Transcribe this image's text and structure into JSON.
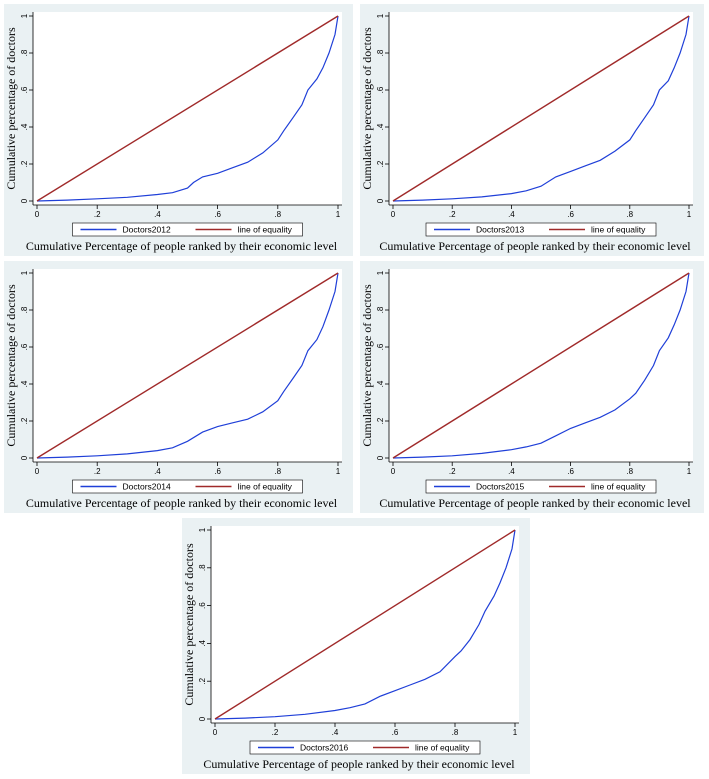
{
  "chart_data": [
    {
      "type": "line",
      "xlabel": "Cumulative Percentage of people ranked by their economic level",
      "ylabel": "Cumulative percentage of doctors",
      "xlim": [
        0,
        1
      ],
      "ylim": [
        0,
        1
      ],
      "xticks": [
        "0",
        ".2",
        ".4",
        ".6",
        ".8",
        "1"
      ],
      "yticks": [
        "0",
        ".2",
        ".4",
        ".6",
        ".8",
        "1"
      ],
      "legend_position": "bottom",
      "series": [
        {
          "name": "Doctors2012",
          "color": "#1f3fd8",
          "x": [
            0,
            0.1,
            0.2,
            0.3,
            0.4,
            0.45,
            0.5,
            0.52,
            0.55,
            0.6,
            0.65,
            0.7,
            0.75,
            0.8,
            0.82,
            0.85,
            0.88,
            0.9,
            0.93,
            0.95,
            0.97,
            0.99,
            1
          ],
          "y": [
            0,
            0.005,
            0.012,
            0.02,
            0.035,
            0.045,
            0.07,
            0.1,
            0.13,
            0.15,
            0.18,
            0.21,
            0.26,
            0.33,
            0.38,
            0.45,
            0.52,
            0.6,
            0.66,
            0.72,
            0.8,
            0.9,
            1
          ]
        },
        {
          "name": "line of equality",
          "color": "#a02a2a",
          "x": [
            0,
            1
          ],
          "y": [
            0,
            1
          ]
        }
      ]
    },
    {
      "type": "line",
      "xlabel": "Cumulative Percentage of people ranked by their economic level",
      "ylabel": "Cumulative percentage of doctors",
      "xlim": [
        0,
        1
      ],
      "ylim": [
        0,
        1
      ],
      "xticks": [
        "0",
        ".2",
        ".4",
        ".6",
        ".8",
        "1"
      ],
      "yticks": [
        "0",
        ".2",
        ".4",
        ".6",
        ".8",
        "1"
      ],
      "legend_position": "bottom",
      "series": [
        {
          "name": "Doctors2013",
          "color": "#1f3fd8",
          "x": [
            0,
            0.1,
            0.2,
            0.3,
            0.4,
            0.45,
            0.5,
            0.55,
            0.6,
            0.65,
            0.7,
            0.75,
            0.8,
            0.82,
            0.85,
            0.88,
            0.9,
            0.93,
            0.95,
            0.97,
            0.99,
            1
          ],
          "y": [
            0,
            0.005,
            0.012,
            0.022,
            0.04,
            0.055,
            0.08,
            0.13,
            0.16,
            0.19,
            0.22,
            0.27,
            0.33,
            0.38,
            0.45,
            0.52,
            0.6,
            0.65,
            0.72,
            0.8,
            0.9,
            1
          ]
        },
        {
          "name": "line of equality",
          "color": "#a02a2a",
          "x": [
            0,
            1
          ],
          "y": [
            0,
            1
          ]
        }
      ]
    },
    {
      "type": "line",
      "xlabel": "Cumulative Percentage of people ranked by their economic level",
      "ylabel": "Cumulative percentage of doctors",
      "xlim": [
        0,
        1
      ],
      "ylim": [
        0,
        1
      ],
      "xticks": [
        "0",
        ".2",
        ".4",
        ".6",
        ".8",
        "1"
      ],
      "yticks": [
        "0",
        ".2",
        ".4",
        ".6",
        ".8",
        "1"
      ],
      "legend_position": "bottom",
      "series": [
        {
          "name": "Doctors2014",
          "color": "#1f3fd8",
          "x": [
            0,
            0.1,
            0.2,
            0.3,
            0.4,
            0.45,
            0.5,
            0.55,
            0.6,
            0.65,
            0.7,
            0.75,
            0.8,
            0.82,
            0.85,
            0.88,
            0.9,
            0.93,
            0.95,
            0.97,
            0.99,
            1
          ],
          "y": [
            0,
            0.005,
            0.012,
            0.022,
            0.04,
            0.055,
            0.09,
            0.14,
            0.17,
            0.19,
            0.21,
            0.25,
            0.31,
            0.36,
            0.43,
            0.5,
            0.58,
            0.64,
            0.71,
            0.8,
            0.9,
            1
          ]
        },
        {
          "name": "line of equality",
          "color": "#a02a2a",
          "x": [
            0,
            1
          ],
          "y": [
            0,
            1
          ]
        }
      ]
    },
    {
      "type": "line",
      "xlabel": "Cumulative Percentage of people ranked by their economic level",
      "ylabel": "Cumulative percentage of doctors",
      "xlim": [
        0,
        1
      ],
      "ylim": [
        0,
        1
      ],
      "xticks": [
        "0",
        ".2",
        ".4",
        ".6",
        ".8",
        "1"
      ],
      "yticks": [
        "0",
        ".2",
        ".4",
        ".6",
        ".8",
        "1"
      ],
      "legend_position": "bottom",
      "series": [
        {
          "name": "Doctors2015",
          "color": "#1f3fd8",
          "x": [
            0,
            0.1,
            0.2,
            0.3,
            0.4,
            0.45,
            0.5,
            0.55,
            0.6,
            0.65,
            0.7,
            0.75,
            0.8,
            0.82,
            0.85,
            0.88,
            0.9,
            0.93,
            0.95,
            0.97,
            0.99,
            1
          ],
          "y": [
            0,
            0.005,
            0.012,
            0.025,
            0.045,
            0.06,
            0.08,
            0.12,
            0.16,
            0.19,
            0.22,
            0.26,
            0.32,
            0.35,
            0.42,
            0.5,
            0.58,
            0.65,
            0.72,
            0.8,
            0.9,
            1
          ]
        },
        {
          "name": "line of equality",
          "color": "#a02a2a",
          "x": [
            0,
            1
          ],
          "y": [
            0,
            1
          ]
        }
      ]
    },
    {
      "type": "line",
      "xlabel": "Cumulative Percentage of people ranked by their economic level",
      "ylabel": "Cumulative percentage of doctors",
      "xlim": [
        0,
        1
      ],
      "ylim": [
        0,
        1
      ],
      "xticks": [
        "0",
        ".2",
        ".4",
        ".6",
        ".8",
        "1"
      ],
      "yticks": [
        "0",
        ".2",
        ".4",
        ".6",
        ".8",
        "1"
      ],
      "legend_position": "bottom",
      "series": [
        {
          "name": "Doctors2016",
          "color": "#1f3fd8",
          "x": [
            0,
            0.1,
            0.2,
            0.3,
            0.4,
            0.45,
            0.5,
            0.55,
            0.6,
            0.65,
            0.7,
            0.75,
            0.8,
            0.82,
            0.85,
            0.88,
            0.9,
            0.93,
            0.95,
            0.97,
            0.99,
            1
          ],
          "y": [
            0,
            0.005,
            0.012,
            0.025,
            0.045,
            0.06,
            0.08,
            0.12,
            0.15,
            0.18,
            0.21,
            0.25,
            0.33,
            0.36,
            0.42,
            0.5,
            0.57,
            0.65,
            0.72,
            0.8,
            0.9,
            1
          ]
        },
        {
          "name": "line of equality",
          "color": "#a02a2a",
          "x": [
            0,
            1
          ],
          "y": [
            0,
            1
          ]
        }
      ]
    }
  ]
}
